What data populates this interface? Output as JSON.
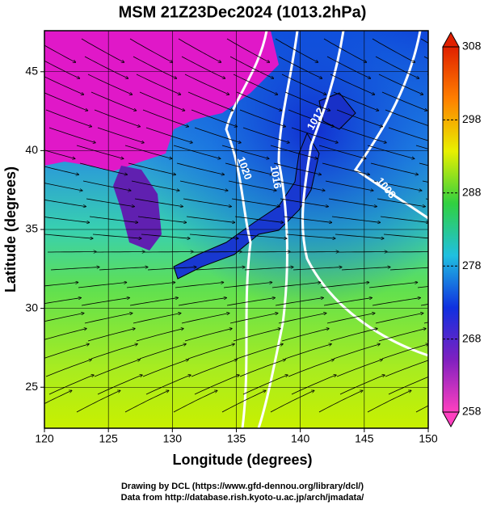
{
  "title": "MSM 21Z23Dec2024 (1013.2hPa)",
  "x_axis": {
    "label": "Longitude (degrees)",
    "lim": [
      120,
      150
    ],
    "ticks": [
      120,
      125,
      130,
      135,
      140,
      145,
      150
    ]
  },
  "y_axis": {
    "label": "Latitude  (degrees)",
    "lim": [
      22.4,
      47.6
    ],
    "ticks": [
      25,
      30,
      35,
      40,
      45
    ]
  },
  "colorbar": {
    "lim": [
      258,
      308
    ],
    "ticks": [
      258,
      268,
      278,
      288,
      298,
      308
    ],
    "colors": [
      "#ff40c0",
      "#8020c0",
      "#1030e0",
      "#20c0e0",
      "#30d040",
      "#e8f000",
      "#ff8000",
      "#e02000"
    ]
  },
  "contours": [
    {
      "label": "1020"
    },
    {
      "label": "1016"
    },
    {
      "label": "1012"
    },
    {
      "label": "1008"
    }
  ],
  "footer": [
    "Drawing by DCL (https://www.gfd-dennou.org/library/dcl/)",
    "Data from http://database.rish.kyoto-u.ac.jp/arch/jmadata/"
  ]
}
